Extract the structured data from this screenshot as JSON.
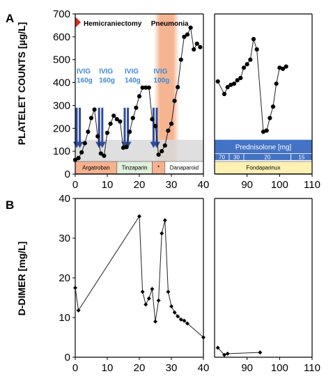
{
  "panels": {
    "a": {
      "letter": "A",
      "ylabel": "PLATELET COUNTS [µg/L]"
    },
    "b": {
      "letter": "B",
      "ylabel": "D-DIMER [mg/L]"
    }
  },
  "colors": {
    "line": "#222222",
    "ivig_arrow": "#2e4d9a",
    "ivig_text": "#3a8ad8",
    "pneumonia_band": "#f4a77e",
    "gray_band": "#d9d9d9",
    "argatroban": "#f6b18f",
    "tinzaparin": "#dff0dc",
    "star_drug": "#f6b18f",
    "danaparoid": "#ffffff",
    "fondaparinux": "#fff0b3",
    "prednisolone": "#4472c4",
    "red_marker": "#d62728"
  },
  "chart_data": [
    {
      "panel": "A",
      "type": "line",
      "ylabel": "PLATELET COUNTS [µg/L]",
      "xlim_left": [
        0,
        40
      ],
      "xlim_right": [
        80,
        110
      ],
      "ylim": [
        0,
        700
      ],
      "x_ticks_left": [
        0,
        10,
        20,
        30,
        40
      ],
      "x_ticks_right": [
        90,
        100,
        110
      ],
      "y_ticks": [
        0,
        100,
        200,
        300,
        400,
        500,
        600,
        700
      ],
      "grid": false,
      "series": [
        {
          "values_left": [
            [
              0,
              62
            ],
            [
              1,
              70
            ],
            [
              2,
              95
            ],
            [
              3,
              135
            ],
            [
              4,
              185
            ],
            [
              5,
              245
            ],
            [
              6,
              282
            ],
            [
              7,
              165
            ],
            [
              8,
              90
            ],
            [
              9,
              80
            ],
            [
              10,
              180
            ],
            [
              11,
              220
            ],
            [
              12,
              255
            ],
            [
              13,
              240
            ],
            [
              14,
              230
            ],
            [
              15,
              115
            ],
            [
              16,
              118
            ],
            [
              17,
              185
            ],
            [
              18,
              245
            ],
            [
              19,
              290
            ],
            [
              20,
              340
            ],
            [
              21,
              378
            ],
            [
              22,
              378
            ],
            [
              23,
              378
            ],
            [
              24,
              240
            ],
            [
              25,
              210
            ],
            [
              26,
              85
            ],
            [
              27,
              100
            ],
            [
              28,
              125
            ],
            [
              29,
              190
            ],
            [
              30,
              220
            ],
            [
              31,
              320
            ],
            [
              32,
              380
            ],
            [
              33,
              500
            ],
            [
              34,
              600
            ],
            [
              35,
              610
            ],
            [
              36,
              640
            ],
            [
              37,
              545
            ],
            [
              38,
              570
            ],
            [
              39,
              555
            ]
          ],
          "values_right": [
            [
              81,
              405
            ],
            [
              83,
              350
            ],
            [
              84,
              380
            ],
            [
              85,
              390
            ],
            [
              86,
              395
            ],
            [
              87,
              410
            ],
            [
              88,
              420
            ],
            [
              89,
              465
            ],
            [
              90,
              480
            ],
            [
              91,
              500
            ],
            [
              92,
              590
            ],
            [
              93,
              545
            ],
            [
              95,
              185
            ],
            [
              96,
              190
            ],
            [
              97,
              245
            ],
            [
              98,
              295
            ],
            [
              99,
              395
            ],
            [
              100,
              465
            ],
            [
              101,
              460
            ],
            [
              102,
              470
            ]
          ]
        }
      ],
      "annotations": {
        "hemicraniectomy": {
          "label": "Hemicraniectomy",
          "day": 0
        },
        "pneumonia": {
          "label": "Pneumonia",
          "x_range": [
            24.5,
            32.5
          ]
        },
        "gray_band_ylim": [
          0,
          150
        ],
        "ivig": [
          {
            "label": "IVIG\n160g",
            "arrow_days": [
              0,
              1
            ]
          },
          {
            "label": "IVIG\n160g",
            "arrow_days": [
              7,
              8
            ]
          },
          {
            "label": "IVIG\n140g",
            "arrow_days": [
              15,
              16
            ]
          },
          {
            "label": "IVIG\n100g",
            "arrow_days": [
              24,
              25
            ]
          }
        ],
        "drugs": [
          {
            "label": "Argatroban",
            "x_range": [
              0,
              13
            ]
          },
          {
            "label": "Tinzaparin",
            "x_range": [
              13,
              24
            ]
          },
          {
            "label": "*",
            "x_range": [
              24,
              28
            ]
          },
          {
            "label": "Danaparoid",
            "x_range": [
              28,
              40
            ]
          },
          {
            "label": "Fondaparinux",
            "x_range": [
              80,
              110
            ]
          }
        ],
        "prednisolone": {
          "title": "Prednisolone [mg]",
          "doses": [
            {
              "label": "70",
              "x_range": [
                80,
                84.5
              ]
            },
            {
              "label": "30",
              "x_range": [
                84.5,
                89
              ]
            },
            {
              "label": "20",
              "x_range": [
                89,
                103.5
              ]
            },
            {
              "label": "15",
              "x_range": [
                103.5,
                110
              ]
            }
          ]
        }
      }
    },
    {
      "panel": "B",
      "type": "line",
      "ylabel": "D-DIMER [mg/L]",
      "xlim_left": [
        0,
        40
      ],
      "xlim_right": [
        80,
        110
      ],
      "ylim": [
        0,
        40
      ],
      "x_ticks_left": [
        0,
        10,
        20,
        30,
        40
      ],
      "x_ticks_right": [
        90,
        100,
        110
      ],
      "y_ticks": [
        0,
        10,
        20,
        30,
        40
      ],
      "grid": false,
      "series": [
        {
          "values_left": [
            [
              0,
              17.5
            ],
            [
              1,
              11.8
            ],
            [
              20,
              35.5
            ],
            [
              21,
              16.5
            ],
            [
              22,
              13.3
            ],
            [
              23,
              14.8
            ],
            [
              24,
              17.2
            ],
            [
              25,
              9.0
            ],
            [
              26,
              14.3
            ],
            [
              27,
              31.2
            ],
            [
              28,
              34.5
            ],
            [
              29,
              16.5
            ],
            [
              30,
              12.8
            ],
            [
              31,
              11.3
            ],
            [
              32,
              10.3
            ],
            [
              33,
              9.5
            ],
            [
              34,
              9.2
            ],
            [
              35,
              8.5
            ],
            [
              40,
              5.0
            ]
          ],
          "values_right": [
            [
              81,
              2.4
            ],
            [
              83,
              0.6
            ],
            [
              84,
              0.9
            ],
            [
              94,
              1.2
            ]
          ]
        }
      ]
    }
  ]
}
